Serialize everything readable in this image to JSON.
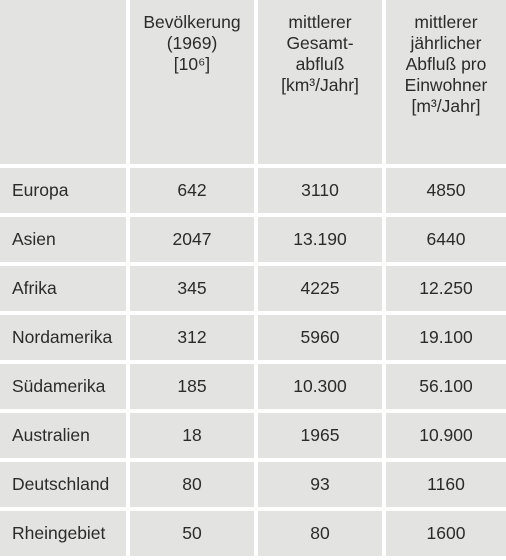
{
  "table": {
    "headers": [
      "",
      "Bevölkerung (1969) [10⁶]",
      "mittlerer Gesamt-abfluß [km³/Jahr]",
      "mittlerer jährlicher Abfluß pro Einwohner [m³/Jahr]"
    ],
    "header_lines": {
      "col1": [
        "Bevölkerung",
        "(1969)",
        "[10⁶]"
      ],
      "col2": [
        "mittlerer",
        "Gesamt-",
        "abfluß",
        "[km³/Jahr]"
      ],
      "col3": [
        "mittlerer",
        "jährlicher",
        "Abfluß pro",
        "Einwohner",
        "[m³/Jahr]"
      ]
    },
    "rows": [
      {
        "region": "Europa",
        "population": "642",
        "total_runoff": "3110",
        "runoff_per_capita": "4850"
      },
      {
        "region": "Asien",
        "population": "2047",
        "total_runoff": "13.190",
        "runoff_per_capita": "6440"
      },
      {
        "region": "Afrika",
        "population": "345",
        "total_runoff": "4225",
        "runoff_per_capita": "12.250"
      },
      {
        "region": "Nordamerika",
        "population": "312",
        "total_runoff": "5960",
        "runoff_per_capita": "19.100"
      },
      {
        "region": "Südamerika",
        "population": "185",
        "total_runoff": "10.300",
        "runoff_per_capita": "56.100"
      },
      {
        "region": "Australien",
        "population": "18",
        "total_runoff": "1965",
        "runoff_per_capita": "10.900"
      },
      {
        "region": "Deutschland",
        "population": "80",
        "total_runoff": "93",
        "runoff_per_capita": "1160"
      },
      {
        "region": "Rheingebiet",
        "population": "50",
        "total_runoff": "80",
        "runoff_per_capita": "1600"
      }
    ]
  }
}
